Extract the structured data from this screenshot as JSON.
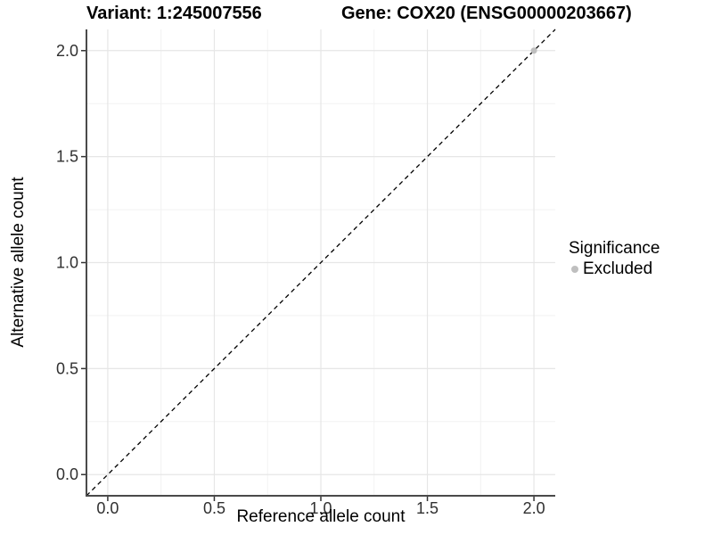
{
  "chart_data": {
    "type": "scatter",
    "title_left": "Variant: 1:245007556",
    "title_right": "Gene: COX20 (ENSG00000203667)",
    "xlabel": "Reference allele count",
    "ylabel": "Alternative allele count",
    "xlim": [
      -0.1,
      2.1
    ],
    "ylim": [
      -0.1,
      2.1
    ],
    "xticks": [
      0.0,
      0.5,
      1.0,
      1.5,
      2.0
    ],
    "yticks": [
      0.0,
      0.5,
      1.0,
      1.5,
      2.0
    ],
    "xminor": [
      0.25,
      0.75,
      1.25,
      1.75
    ],
    "yminor": [
      0.25,
      0.75,
      1.25,
      1.75
    ],
    "tick_label_format": "one-decimal",
    "grid": "major-and-minor",
    "identity_line": {
      "style": "dashed",
      "color": "#000000",
      "from": [
        -0.1,
        -0.1
      ],
      "to": [
        2.1,
        2.1
      ]
    },
    "series": [
      {
        "name": "Excluded",
        "color": "#bfbfbf",
        "points": [
          [
            2.0,
            2.0
          ]
        ]
      }
    ],
    "legend": {
      "title": "Significance",
      "position": "right",
      "items": [
        {
          "label": "Excluded",
          "color": "#bfbfbf"
        }
      ]
    }
  },
  "colors": {
    "background": "#ffffff",
    "grid_major": "#e6e6e6",
    "grid_minor": "#f2f2f2",
    "axis_line": "#4a4a4a",
    "tick_mark": "#333333",
    "tick_label": "#303030",
    "point": "#bfbfbf"
  }
}
